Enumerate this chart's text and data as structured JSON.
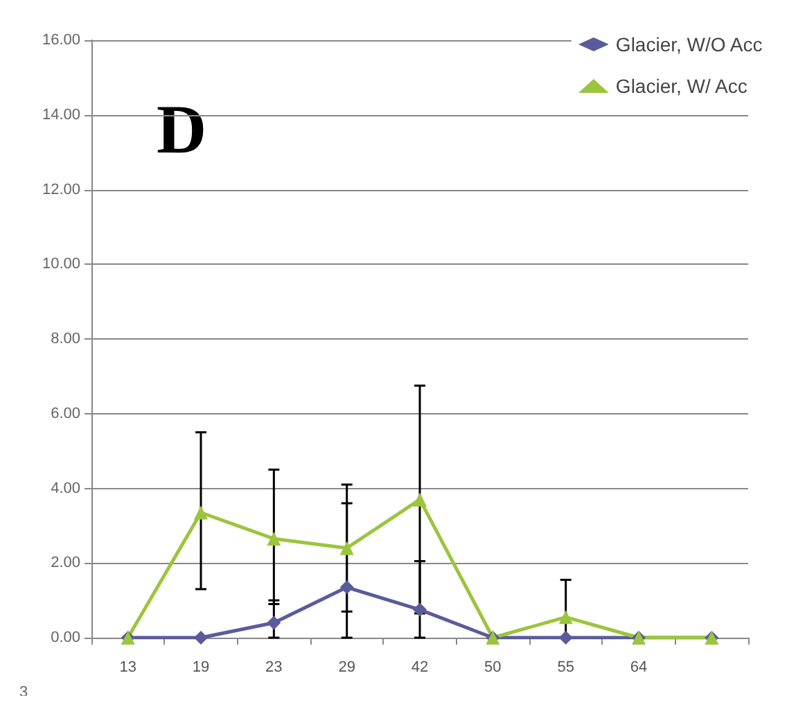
{
  "chart_data": {
    "type": "line",
    "categories": [
      "13",
      "19",
      "23",
      "29",
      "42",
      "50",
      "55",
      "64",
      null
    ],
    "series": [
      {
        "name": "Glacier, W/O Acc",
        "color": "#5b5b9b",
        "marker": "diamond",
        "values": [
          0,
          0,
          0.4,
          1.35,
          0.75,
          0,
          0,
          0,
          0
        ],
        "errors": [
          null,
          null,
          [
            0,
            1.0
          ],
          [
            0,
            3.6
          ],
          [
            0,
            2.05
          ],
          null,
          null,
          null,
          null
        ]
      },
      {
        "name": "Glacier, W/ Acc",
        "color": "#9bc53d",
        "marker": "triangle",
        "values": [
          0,
          3.35,
          2.65,
          2.4,
          3.7,
          0,
          0.55,
          0,
          0
        ],
        "errors": [
          null,
          [
            1.3,
            5.5
          ],
          [
            0.9,
            4.5
          ],
          [
            0.7,
            4.1
          ],
          [
            0.65,
            6.75
          ],
          null,
          [
            0,
            1.55
          ],
          null,
          null
        ]
      }
    ],
    "ylim": [
      0,
      16
    ],
    "yticks": [
      {
        "value": 0,
        "label": "0.00"
      },
      {
        "value": 2,
        "label": "2.00"
      },
      {
        "value": 4,
        "label": "4.00"
      },
      {
        "value": 6,
        "label": "6.00"
      },
      {
        "value": 8,
        "label": "8.00"
      },
      {
        "value": 10,
        "label": "10.00"
      },
      {
        "value": 12,
        "label": "12.00"
      },
      {
        "value": 14,
        "label": "14.00"
      },
      {
        "value": 16,
        "label": "16.00"
      }
    ],
    "grid": "y",
    "legend": "top right",
    "line_style": "solid",
    "annotations": [
      "D",
      "3"
    ]
  }
}
